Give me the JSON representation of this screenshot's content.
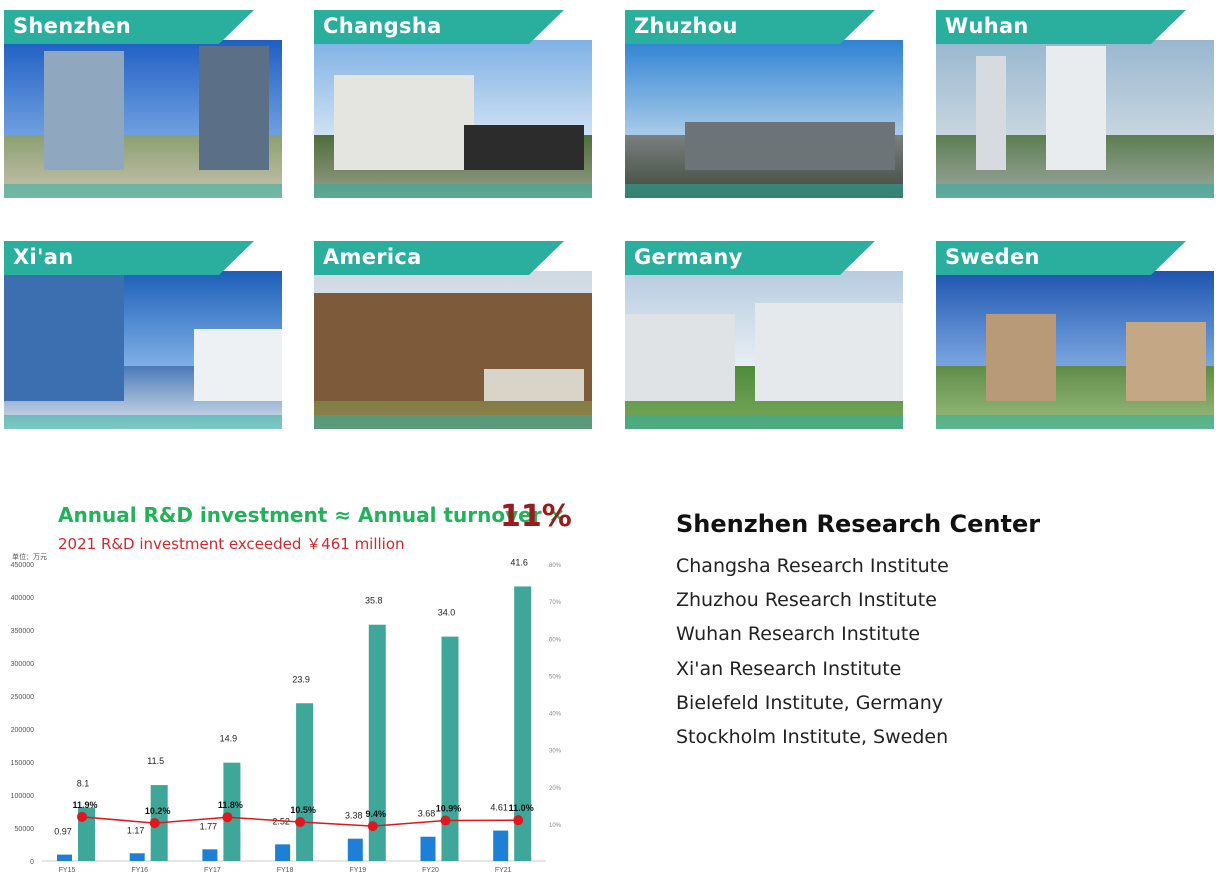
{
  "locations": [
    {
      "city": "Shenzhen"
    },
    {
      "city": "Changsha"
    },
    {
      "city": "Zhuzhou"
    },
    {
      "city": "Wuhan"
    },
    {
      "city": "Xi'an"
    },
    {
      "city": "America"
    },
    {
      "city": "Germany"
    },
    {
      "city": "Sweden"
    }
  ],
  "headline": {
    "title_prefix": "Annual R&D investment ≈ Annual turnover ×",
    "title_value": "11%",
    "subtitle": "2021 R&D investment exceeded ￥461 million"
  },
  "chart_data": {
    "type": "bar",
    "unit_label": "单位：万元",
    "categories": [
      "FY15",
      "FY16",
      "FY17",
      "FY18",
      "FY19",
      "FY20",
      "FY21"
    ],
    "series": [
      {
        "kind": "bar",
        "color": "#1e7fd6",
        "values": [
          9700,
          11700,
          17700,
          25200,
          33800,
          36800,
          46100
        ],
        "labels": [
          "0.97",
          "1.17",
          "1.77",
          "2.52",
          "3.38",
          "3.68",
          "4.61"
        ]
      },
      {
        "kind": "bar",
        "color": "#3fa69a",
        "values": [
          81000,
          115000,
          149000,
          239000,
          358000,
          340000,
          416000
        ],
        "labels": [
          "8.1",
          "11.5",
          "14.9",
          "23.9",
          "35.8",
          "34.0",
          "41.6"
        ]
      },
      {
        "kind": "line",
        "axis": "right",
        "color": "#e0171d",
        "values": [
          11.9,
          10.2,
          11.8,
          10.5,
          9.4,
          10.9,
          11.0
        ],
        "labels": [
          "11.9%",
          "10.2%",
          "11.8%",
          "10.5%",
          "9.4%",
          "10.9%",
          "11.0%"
        ]
      }
    ],
    "y_left": {
      "min": 0,
      "max": 450000,
      "ticks": [
        "0",
        "50000",
        "100000",
        "150000",
        "200000",
        "250000",
        "300000",
        "350000",
        "400000",
        "450000"
      ]
    },
    "y_right": {
      "min": 0,
      "max": 80,
      "ticks": [
        "10%",
        "20%",
        "30%",
        "40%",
        "50%",
        "60%",
        "70%",
        "80%"
      ]
    },
    "grid": false
  },
  "research": {
    "title": "Shenzhen Research Center",
    "items": [
      "Changsha Research Institute",
      "Zhuzhou Research Institute",
      "Wuhan Research Institute",
      "Xi'an Research Institute",
      "Bielefeld Institute, Germany",
      "Stockholm Institute, Sweden"
    ]
  }
}
